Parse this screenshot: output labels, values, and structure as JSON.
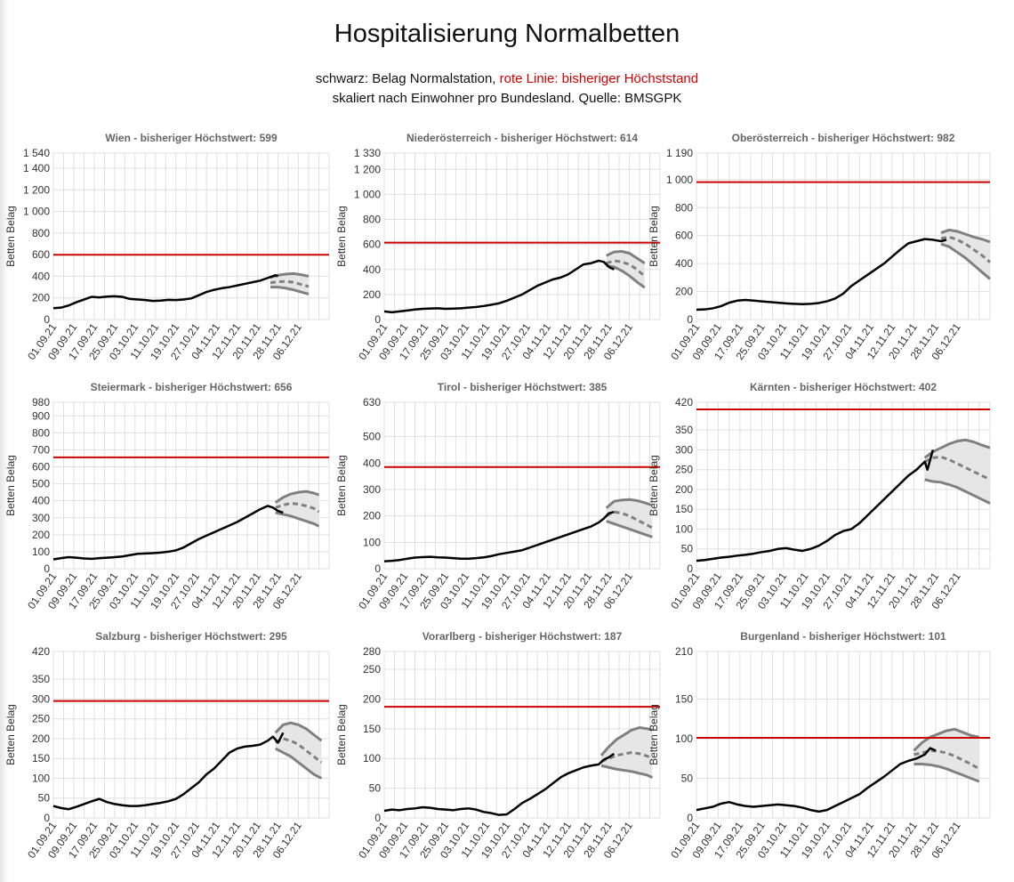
{
  "header": {
    "title": "Hospitalisierung Normalbetten",
    "sub1_black": "schwarz: Belag Normalstation, ",
    "sub1_red": "rote Linie: bisheriger Höchststand",
    "sub2": "skaliert nach Einwohner pro Bundesland. Quelle: BMSGPK"
  },
  "colors": {
    "actual": "#000000",
    "max_line": "#cc0000",
    "forecast": "#808080",
    "band": "#e6e6e6",
    "grid": "#e0e0e0"
  },
  "x_tick_labels": [
    "01.09.21",
    "09.09.21",
    "17.09.21",
    "25.09.21",
    "03.10.21",
    "11.10.21",
    "19.10.21",
    "27.10.21",
    "04.11.21",
    "12.11.21",
    "20.11.21",
    "28.11.21",
    "06.12.21"
  ],
  "chart_data": [
    {
      "type": "line",
      "title": "Wien - bisheriger Höchstwert: 599",
      "ylabel": "Betten Belag",
      "xlabel": "",
      "ylim": [
        0,
        1540
      ],
      "yticks": [
        "0",
        "200",
        "400",
        "600",
        "800",
        "1 000",
        "1 200",
        "1 400",
        "1 540"
      ],
      "ytick_values": [
        0,
        200,
        400,
        600,
        800,
        1000,
        1200,
        1400,
        1540
      ],
      "max": 599,
      "actual": {
        "x": [
          0,
          3,
          6,
          9,
          12,
          15,
          18,
          21,
          24,
          27,
          30,
          33,
          36,
          39,
          42,
          45,
          48,
          51,
          54,
          57,
          60,
          63,
          66,
          69,
          72,
          75,
          78,
          81,
          84,
          87,
          88
        ],
        "y": [
          105,
          110,
          130,
          160,
          185,
          210,
          205,
          212,
          215,
          210,
          190,
          185,
          180,
          172,
          175,
          182,
          180,
          185,
          195,
          225,
          255,
          275,
          290,
          300,
          315,
          330,
          345,
          360,
          385,
          410,
          400
        ]
      },
      "forecast": {
        "x": [
          85,
          88,
          91,
          94,
          97,
          100
        ],
        "mid": [
          340,
          350,
          352,
          345,
          325,
          305
        ],
        "upper": [
          390,
          410,
          420,
          425,
          415,
          400
        ],
        "lower": [
          300,
          300,
          290,
          275,
          255,
          235
        ]
      }
    },
    {
      "type": "line",
      "title": "Niederösterreich - bisheriger Höchstwert: 614",
      "ylabel": "Betten Belag",
      "xlabel": "",
      "ylim": [
        0,
        1330
      ],
      "yticks": [
        "0",
        "200",
        "400",
        "600",
        "800",
        "1 000",
        "1 200",
        "1 330"
      ],
      "ytick_values": [
        0,
        200,
        400,
        600,
        800,
        1000,
        1200,
        1330
      ],
      "max": 614,
      "actual": {
        "x": [
          0,
          3,
          6,
          9,
          12,
          15,
          18,
          21,
          24,
          27,
          30,
          33,
          36,
          39,
          42,
          45,
          48,
          51,
          54,
          57,
          60,
          63,
          66,
          69,
          72,
          75,
          78,
          81,
          84,
          86,
          88,
          90
        ],
        "y": [
          65,
          58,
          65,
          72,
          80,
          85,
          88,
          90,
          85,
          87,
          90,
          95,
          100,
          108,
          118,
          130,
          150,
          175,
          200,
          235,
          270,
          295,
          320,
          335,
          360,
          400,
          440,
          450,
          470,
          460,
          420,
          400
        ]
      },
      "forecast": {
        "x": [
          87,
          90,
          93,
          96,
          99,
          102
        ],
        "mid": [
          450,
          470,
          460,
          440,
          400,
          345
        ],
        "upper": [
          510,
          540,
          545,
          530,
          490,
          450
        ],
        "lower": [
          430,
          420,
          390,
          350,
          300,
          255
        ]
      }
    },
    {
      "type": "line",
      "title": "Oberösterreich - bisheriger Höchstwert: 982",
      "ylabel": "Betten Belag",
      "xlabel": "",
      "ylim": [
        0,
        1190
      ],
      "yticks": [
        "0",
        "200",
        "400",
        "600",
        "800",
        "1 000",
        "1 190"
      ],
      "ytick_values": [
        0,
        200,
        400,
        600,
        800,
        1000,
        1190
      ],
      "max": 982,
      "actual": {
        "x": [
          0,
          3,
          6,
          9,
          12,
          15,
          18,
          21,
          24,
          27,
          30,
          33,
          36,
          39,
          42,
          45,
          48,
          51,
          54,
          57,
          60,
          63,
          66,
          69,
          72,
          75,
          78,
          81,
          84,
          87,
          90,
          92
        ],
        "y": [
          70,
          72,
          80,
          95,
          120,
          135,
          140,
          135,
          130,
          125,
          120,
          115,
          112,
          110,
          112,
          118,
          130,
          150,
          185,
          240,
          280,
          320,
          360,
          400,
          450,
          500,
          545,
          560,
          575,
          570,
          560,
          570
        ]
      },
      "forecast": {
        "x": [
          90,
          93,
          96,
          99,
          102,
          105,
          108
        ],
        "mid": [
          580,
          590,
          570,
          540,
          500,
          460,
          410
        ],
        "upper": [
          620,
          640,
          630,
          610,
          590,
          575,
          555
        ],
        "lower": [
          540,
          520,
          480,
          440,
          390,
          340,
          290
        ]
      }
    },
    {
      "type": "line",
      "title": "Steiermark - bisheriger Höchstwert: 656",
      "ylabel": "Betten Belag",
      "xlabel": "",
      "ylim": [
        0,
        980
      ],
      "yticks": [
        "0",
        "100",
        "200",
        "300",
        "400",
        "500",
        "600",
        "700",
        "800",
        "900",
        "980"
      ],
      "ytick_values": [
        0,
        100,
        200,
        300,
        400,
        500,
        600,
        700,
        800,
        900,
        980
      ],
      "max": 656,
      "actual": {
        "x": [
          0,
          3,
          6,
          9,
          12,
          15,
          18,
          21,
          24,
          27,
          30,
          33,
          36,
          39,
          42,
          45,
          48,
          51,
          54,
          57,
          60,
          63,
          66,
          69,
          72,
          75,
          78,
          81,
          84,
          86,
          88,
          90
        ],
        "y": [
          55,
          62,
          68,
          65,
          60,
          58,
          62,
          65,
          68,
          72,
          80,
          88,
          90,
          92,
          95,
          100,
          108,
          125,
          150,
          175,
          195,
          215,
          235,
          255,
          275,
          300,
          325,
          350,
          370,
          360,
          340,
          330
        ]
      },
      "forecast": {
        "x": [
          87,
          90,
          93,
          96,
          99,
          102,
          104
        ],
        "mid": [
          360,
          375,
          385,
          380,
          370,
          355,
          335
        ],
        "upper": [
          390,
          420,
          440,
          450,
          455,
          445,
          435
        ],
        "lower": [
          330,
          320,
          310,
          295,
          280,
          265,
          250
        ]
      }
    },
    {
      "type": "line",
      "title": "Tirol - bisheriger Höchstwert: 385",
      "ylabel": "Betten Belag",
      "xlabel": "",
      "ylim": [
        0,
        630
      ],
      "yticks": [
        "0",
        "100",
        "200",
        "300",
        "400",
        "500",
        "630"
      ],
      "ytick_values": [
        0,
        100,
        200,
        300,
        400,
        500,
        630
      ],
      "max": 385,
      "actual": {
        "x": [
          0,
          3,
          6,
          9,
          12,
          15,
          18,
          21,
          24,
          27,
          30,
          33,
          36,
          39,
          42,
          45,
          48,
          51,
          54,
          57,
          60,
          63,
          66,
          69,
          72,
          75,
          78,
          81,
          84,
          86,
          88,
          90
        ],
        "y": [
          28,
          30,
          33,
          38,
          42,
          44,
          45,
          43,
          42,
          40,
          38,
          38,
          40,
          43,
          48,
          55,
          60,
          65,
          70,
          80,
          90,
          100,
          110,
          120,
          130,
          140,
          150,
          160,
          175,
          190,
          210,
          215
        ]
      },
      "forecast": {
        "x": [
          87,
          90,
          93,
          96,
          99,
          102,
          105
        ],
        "mid": [
          200,
          215,
          210,
          200,
          185,
          170,
          155
        ],
        "upper": [
          230,
          255,
          260,
          262,
          258,
          250,
          240
        ],
        "lower": [
          180,
          170,
          160,
          150,
          140,
          130,
          120
        ]
      }
    },
    {
      "type": "line",
      "title": "Kärnten - bisheriger Höchstwert: 402",
      "ylabel": "Betten Belag",
      "xlabel": "",
      "ylim": [
        0,
        420
      ],
      "yticks": [
        "0",
        "50",
        "100",
        "150",
        "200",
        "250",
        "300",
        "350",
        "420"
      ],
      "ytick_values": [
        0,
        50,
        100,
        150,
        200,
        250,
        300,
        350,
        420
      ],
      "max": 402,
      "actual": {
        "x": [
          0,
          3,
          6,
          9,
          12,
          15,
          18,
          21,
          24,
          27,
          30,
          33,
          36,
          39,
          42,
          45,
          48,
          51,
          54,
          57,
          60,
          63,
          66,
          69,
          72,
          75,
          78,
          81,
          84,
          85,
          87
        ],
        "y": [
          20,
          22,
          25,
          28,
          30,
          33,
          35,
          38,
          42,
          45,
          50,
          52,
          48,
          45,
          50,
          58,
          70,
          85,
          95,
          100,
          115,
          135,
          155,
          175,
          195,
          215,
          235,
          250,
          270,
          250,
          300
        ]
      },
      "forecast": {
        "x": [
          84,
          87,
          90,
          93,
          96,
          99,
          102,
          105,
          108
        ],
        "mid": [
          270,
          280,
          282,
          275,
          265,
          255,
          245,
          235,
          225
        ],
        "upper": [
          280,
          295,
          305,
          315,
          322,
          325,
          320,
          312,
          305
        ],
        "lower": [
          225,
          220,
          218,
          212,
          205,
          195,
          185,
          175,
          165
        ]
      }
    },
    {
      "type": "line",
      "title": "Salzburg - bisheriger Höchstwert: 295",
      "ylabel": "Betten Belag",
      "xlabel": "",
      "ylim": [
        0,
        420
      ],
      "yticks": [
        "0",
        "50",
        "100",
        "150",
        "200",
        "250",
        "300",
        "350",
        "420"
      ],
      "ytick_values": [
        0,
        50,
        100,
        150,
        200,
        250,
        300,
        350,
        420
      ],
      "max": 295,
      "actual": {
        "x": [
          0,
          3,
          6,
          9,
          12,
          15,
          18,
          21,
          24,
          27,
          30,
          33,
          36,
          39,
          42,
          45,
          48,
          51,
          54,
          57,
          60,
          63,
          66,
          69,
          72,
          75,
          78,
          81,
          84,
          86,
          88,
          90
        ],
        "y": [
          30,
          25,
          22,
          28,
          35,
          42,
          48,
          40,
          35,
          32,
          30,
          30,
          32,
          35,
          38,
          42,
          48,
          60,
          75,
          90,
          110,
          125,
          145,
          165,
          175,
          180,
          182,
          185,
          195,
          205,
          190,
          215
        ]
      },
      "forecast": {
        "x": [
          87,
          90,
          93,
          96,
          99,
          102,
          105
        ],
        "mid": [
          190,
          200,
          195,
          185,
          170,
          155,
          140
        ],
        "upper": [
          215,
          235,
          240,
          235,
          225,
          210,
          195
        ],
        "lower": [
          175,
          165,
          155,
          140,
          125,
          110,
          100
        ]
      }
    },
    {
      "type": "line",
      "title": "Vorarlberg - bisheriger Höchstwert: 187",
      "ylabel": "Betten Belag",
      "xlabel": "",
      "ylim": [
        0,
        280
      ],
      "yticks": [
        "0",
        "50",
        "100",
        "150",
        "200",
        "250",
        "280"
      ],
      "ytick_values": [
        0,
        50,
        100,
        150,
        200,
        250,
        280
      ],
      "max": 187,
      "actual": {
        "x": [
          0,
          3,
          6,
          9,
          12,
          15,
          18,
          21,
          24,
          27,
          30,
          33,
          36,
          39,
          42,
          45,
          48,
          51,
          54,
          57,
          60,
          63,
          66,
          69,
          72,
          75,
          78,
          81,
          84,
          86,
          88,
          90
        ],
        "y": [
          12,
          14,
          13,
          15,
          16,
          18,
          17,
          15,
          14,
          13,
          15,
          16,
          14,
          10,
          8,
          5,
          6,
          15,
          25,
          32,
          40,
          48,
          58,
          68,
          75,
          80,
          85,
          88,
          90,
          98,
          102,
          108
        ]
      },
      "forecast": {
        "x": [
          85,
          88,
          91,
          94,
          97,
          100,
          103,
          105
        ],
        "mid": [
          95,
          100,
          105,
          108,
          110,
          108,
          104,
          100
        ],
        "upper": [
          105,
          120,
          132,
          140,
          148,
          152,
          150,
          148
        ],
        "lower": [
          88,
          85,
          82,
          80,
          78,
          75,
          72,
          68
        ]
      }
    },
    {
      "type": "line",
      "title": "Burgenland - bisheriger Höchstwert: 101",
      "ylabel": "Betten Belag",
      "xlabel": "",
      "ylim": [
        0,
        210
      ],
      "yticks": [
        "0",
        "50",
        "100",
        "150",
        "210"
      ],
      "ytick_values": [
        0,
        50,
        100,
        150,
        210
      ],
      "max": 101,
      "actual": {
        "x": [
          0,
          3,
          6,
          9,
          12,
          15,
          18,
          21,
          24,
          27,
          30,
          33,
          36,
          39,
          42,
          45,
          48,
          51,
          54,
          57,
          60,
          63,
          66,
          69,
          72,
          75,
          78,
          81,
          84,
          86,
          88
        ],
        "y": [
          10,
          12,
          14,
          18,
          20,
          17,
          15,
          14,
          15,
          16,
          17,
          16,
          15,
          13,
          10,
          8,
          10,
          15,
          20,
          25,
          30,
          38,
          45,
          52,
          60,
          68,
          72,
          75,
          80,
          88,
          85
        ]
      },
      "forecast": {
        "x": [
          80,
          83,
          86,
          89,
          92,
          95,
          98,
          101,
          104
        ],
        "mid": [
          80,
          82,
          85,
          84,
          82,
          78,
          73,
          68,
          62
        ],
        "upper": [
          85,
          95,
          102,
          106,
          110,
          112,
          108,
          104,
          102
        ],
        "lower": [
          68,
          68,
          67,
          65,
          62,
          58,
          54,
          50,
          46
        ]
      }
    }
  ]
}
